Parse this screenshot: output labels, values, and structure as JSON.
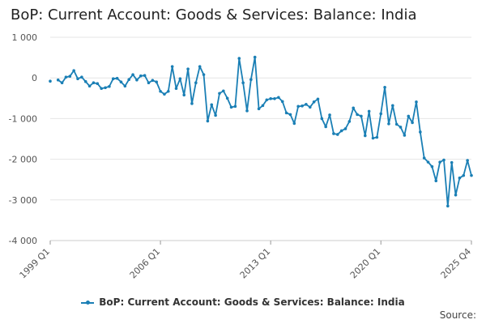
{
  "chart_data": {
    "type": "line",
    "title": "BoP: Current Account: Goods & Services: Balance: India",
    "xlabel": "",
    "ylabel": "",
    "ylim": [
      -4000,
      1000
    ],
    "yticks": [
      1000,
      0,
      -1000,
      -2000,
      -3000,
      -4000
    ],
    "ytick_labels": [
      "1 000",
      "0",
      "-1 000",
      "-2 000",
      "-3 000",
      "-4 000"
    ],
    "xticks": [
      {
        "label": "1999 Q1",
        "index": 0
      },
      {
        "label": "2006 Q1",
        "index": 28
      },
      {
        "label": "2013 Q1",
        "index": 56
      },
      {
        "label": "2020 Q1",
        "index": 84
      },
      {
        "label": "2025 Q4",
        "index": 107
      }
    ],
    "grid": true,
    "legend_position": "bottom",
    "series": [
      {
        "name": "BoP: Current Account: Goods & Services: Balance: India",
        "color": "#1a7fb5",
        "x_start": "1999 Q1",
        "values": [
          -80,
          null,
          -50,
          -120,
          20,
          40,
          180,
          -20,
          20,
          -90,
          -200,
          -120,
          -140,
          -260,
          -240,
          -210,
          -20,
          -10,
          -100,
          -200,
          -40,
          80,
          -50,
          50,
          60,
          -120,
          -60,
          -100,
          -330,
          -400,
          -330,
          280,
          -260,
          -20,
          -420,
          220,
          -630,
          -120,
          280,
          80,
          -1060,
          -660,
          -920,
          -380,
          -320,
          -500,
          -720,
          -700,
          480,
          -120,
          -810,
          -40,
          510,
          -760,
          -680,
          -540,
          -510,
          -510,
          -480,
          -580,
          -860,
          -900,
          -1120,
          -700,
          -690,
          -650,
          -720,
          -590,
          -520,
          -1000,
          -1200,
          -910,
          -1370,
          -1390,
          -1300,
          -1250,
          -1070,
          -740,
          -900,
          -940,
          -1420,
          -820,
          -1480,
          -1460,
          -880,
          -230,
          -1130,
          -680,
          -1140,
          -1210,
          -1410,
          -940,
          -1100,
          -590,
          -1330,
          -1970,
          -2070,
          -2180,
          -2530,
          -2070,
          -2020,
          -3150,
          -2080,
          -2880,
          -2460,
          -2400,
          -2030,
          -2400
        ]
      }
    ],
    "source_label": "Source:"
  }
}
